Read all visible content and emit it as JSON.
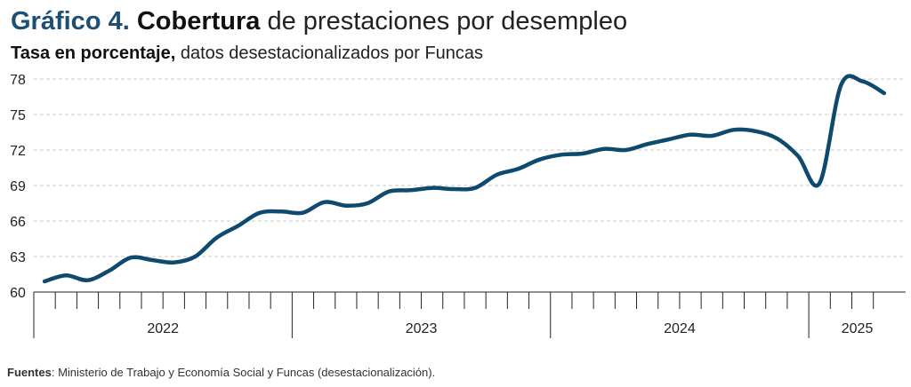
{
  "header": {
    "title_number": "Gráfico 4.",
    "title_bold": "Cobertura",
    "title_rest": "de prestaciones por desempleo",
    "subtitle_bold": "Tasa en porcentaje,",
    "subtitle_rest": "datos desestacionalizados por Funcas"
  },
  "footer": {
    "source_label": "Fuentes",
    "source_text": ": Ministerio de Trabajo y Economía Social y Funcas (desestacionalización)."
  },
  "colors": {
    "line": "#0d4a6e",
    "grid": "#c8c8c8",
    "axis": "#222222"
  },
  "chart_data": {
    "type": "line",
    "title": "Cobertura de prestaciones por desempleo",
    "subtitle": "Tasa en porcentaje, datos desestacionalizados por Funcas",
    "ylim": [
      60,
      78
    ],
    "yticks": [
      "60",
      "63",
      "66",
      "69",
      "72",
      "75",
      "78"
    ],
    "grid": "horizontal-dashed",
    "years": [
      {
        "label": "2022",
        "months": 12
      },
      {
        "label": "2023",
        "months": 12
      },
      {
        "label": "2024",
        "months": 12
      },
      {
        "label": "2025",
        "months": 4
      }
    ],
    "x": [
      "2022-01",
      "2022-02",
      "2022-03",
      "2022-04",
      "2022-05",
      "2022-06",
      "2022-07",
      "2022-08",
      "2022-09",
      "2022-10",
      "2022-11",
      "2022-12",
      "2023-01",
      "2023-02",
      "2023-03",
      "2023-04",
      "2023-05",
      "2023-06",
      "2023-07",
      "2023-08",
      "2023-09",
      "2023-10",
      "2023-11",
      "2023-12",
      "2024-01",
      "2024-02",
      "2024-03",
      "2024-04",
      "2024-05",
      "2024-06",
      "2024-07",
      "2024-08",
      "2024-09",
      "2024-10",
      "2024-11",
      "2024-12",
      "2025-01",
      "2025-02",
      "2025-03",
      "2025-04"
    ],
    "values": [
      60.9,
      61.4,
      61.0,
      61.8,
      62.9,
      62.7,
      62.5,
      63.0,
      64.6,
      65.6,
      66.7,
      66.8,
      66.7,
      67.6,
      67.3,
      67.5,
      68.5,
      68.6,
      68.8,
      68.7,
      68.8,
      69.9,
      70.4,
      71.2,
      71.6,
      71.7,
      72.1,
      72.0,
      72.5,
      72.9,
      73.3,
      73.2,
      73.7,
      73.6,
      73.0,
      71.5,
      69.2,
      77.5,
      77.8,
      76.8
    ]
  }
}
